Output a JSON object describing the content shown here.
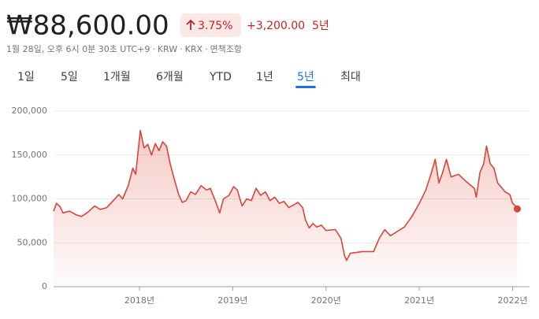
{
  "header": {
    "price": "₩88,600.00",
    "change_percent": "3.75%",
    "change": "+3,200.00",
    "period": "5년",
    "meta_items": [
      "1월 28일, 오후 6시 0분 30초 UTC+9",
      "KRW",
      "KRX",
      "면책조항"
    ],
    "separator": "·"
  },
  "tabs": {
    "items": [
      "1일",
      "5일",
      "1개월",
      "6개월",
      "YTD",
      "1년",
      "5년",
      "최대"
    ],
    "active": 6
  },
  "chart_data": {
    "type": "line",
    "x": [
      2017.08,
      2017.11,
      2017.15,
      2017.18,
      2017.25,
      2017.32,
      2017.38,
      2017.45,
      2017.52,
      2017.58,
      2017.65,
      2017.72,
      2017.78,
      2017.82,
      2017.88,
      2017.93,
      2017.96,
      2018.01,
      2018.05,
      2018.09,
      2018.13,
      2018.17,
      2018.21,
      2018.25,
      2018.29,
      2018.33,
      2018.38,
      2018.42,
      2018.46,
      2018.5,
      2018.55,
      2018.6,
      2018.66,
      2018.72,
      2018.76,
      2018.82,
      2018.86,
      2018.9,
      2018.96,
      2019.01,
      2019.05,
      2019.1,
      2019.15,
      2019.2,
      2019.25,
      2019.3,
      2019.35,
      2019.4,
      2019.45,
      2019.5,
      2019.55,
      2019.6,
      2019.65,
      2019.7,
      2019.75,
      2019.78,
      2019.82,
      2019.86,
      2019.9,
      2019.95,
      2020.0,
      2020.1,
      2020.16,
      2020.2,
      2020.22,
      2020.26,
      2020.39,
      2020.51,
      2020.57,
      2020.63,
      2020.69,
      2020.75,
      2020.84,
      2020.92,
      2021.0,
      2021.07,
      2021.13,
      2021.17,
      2021.21,
      2021.25,
      2021.29,
      2021.34,
      2021.42,
      2021.5,
      2021.59,
      2021.61,
      2021.65,
      2021.69,
      2021.72,
      2021.76,
      2021.8,
      2021.84,
      2021.92,
      2021.97,
      2022.0,
      2022.03,
      2022.05
    ],
    "series": [
      {
        "name": "KRX",
        "color": "#db4437",
        "values": [
          86000,
          95000,
          91000,
          84000,
          86000,
          82000,
          80000,
          85000,
          92000,
          88000,
          90000,
          98000,
          105000,
          100000,
          115000,
          135000,
          128000,
          178000,
          158000,
          162000,
          150000,
          163000,
          155000,
          165000,
          160000,
          140000,
          120000,
          105000,
          96000,
          98000,
          108000,
          105000,
          115000,
          110000,
          112000,
          96000,
          84000,
          100000,
          104000,
          114000,
          110000,
          92000,
          100000,
          98000,
          112000,
          104000,
          108000,
          98000,
          102000,
          95000,
          97000,
          90000,
          93000,
          96000,
          90000,
          76000,
          67000,
          72000,
          68000,
          70000,
          64000,
          65000,
          55000,
          35000,
          30000,
          38000,
          40000,
          40000,
          55000,
          65000,
          58000,
          62000,
          68000,
          80000,
          95000,
          110000,
          130000,
          145000,
          118000,
          130000,
          145000,
          125000,
          128000,
          120000,
          112000,
          102000,
          130000,
          140000,
          160000,
          140000,
          135000,
          118000,
          108000,
          105000,
          95000,
          92000,
          88600
        ]
      }
    ],
    "xlim": [
      2017.08,
      2022.08
    ],
    "xticks": [
      {
        "value": 2018,
        "label": "2018년"
      },
      {
        "value": 2019,
        "label": "2019년"
      },
      {
        "value": 2020,
        "label": "2020년"
      },
      {
        "value": 2021,
        "label": "2021년"
      },
      {
        "value": 2022,
        "label": "2022년"
      }
    ],
    "ylim": [
      0,
      200000
    ],
    "yticks": [
      0,
      {
        "value": 50000,
        "label": "50,000"
      },
      {
        "value": 100000,
        "label": "100,000"
      },
      {
        "value": 150000,
        "label": "150,000"
      },
      {
        "value": 200000,
        "label": "200,000"
      }
    ],
    "grid": true
  }
}
